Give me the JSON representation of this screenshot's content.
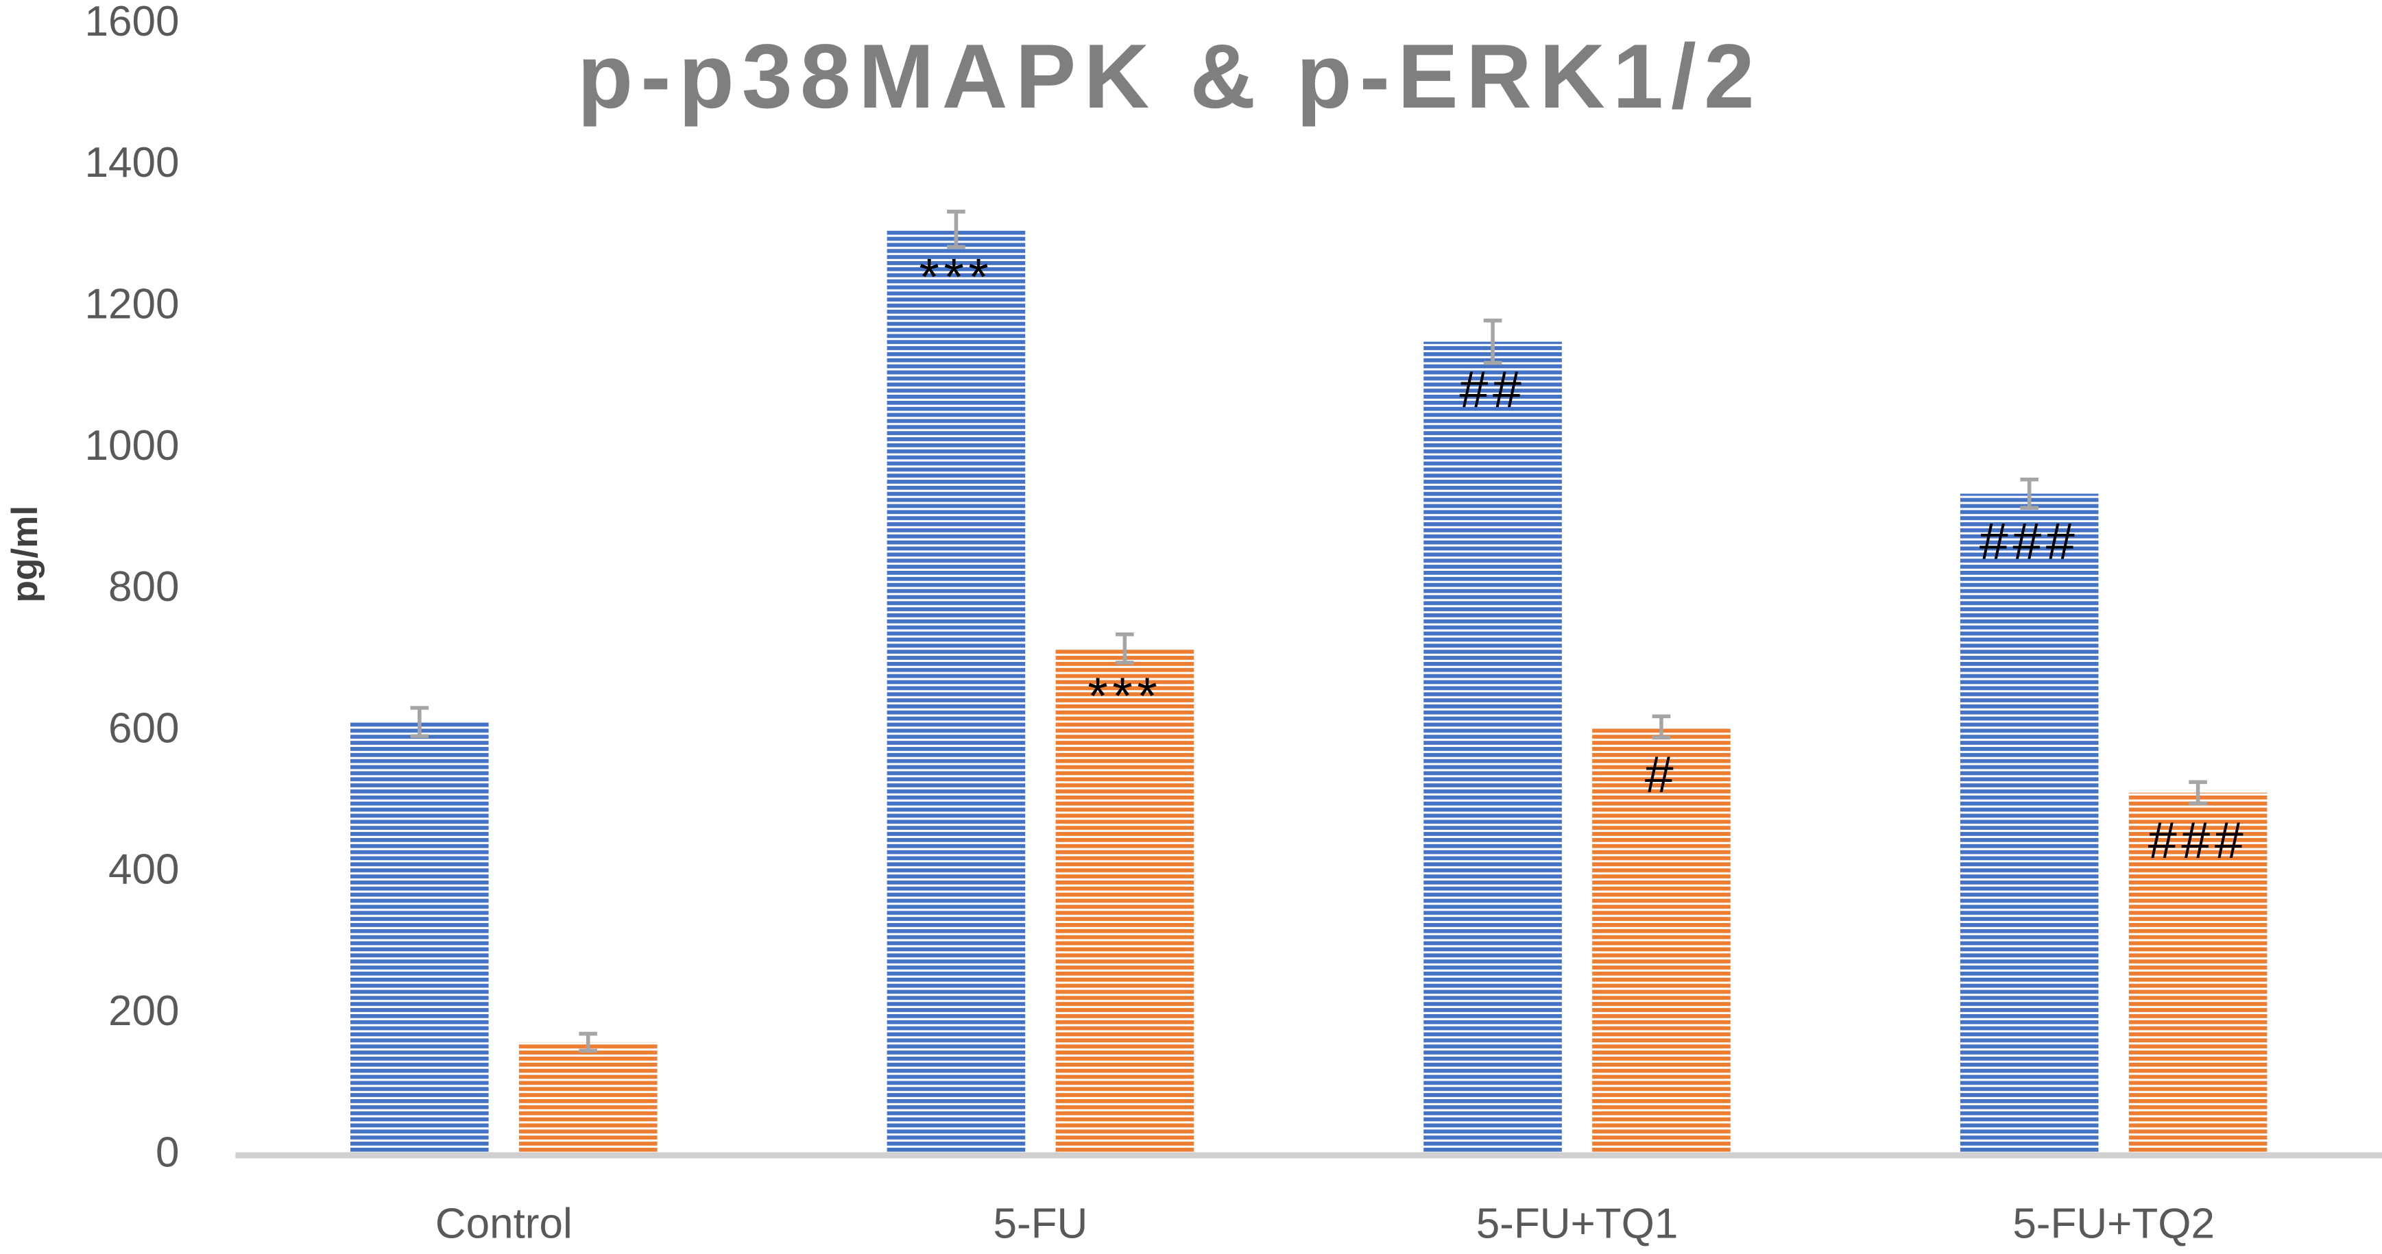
{
  "chart_data": {
    "type": "bar",
    "title": "p-p38MAPK & p-ERK1/2",
    "y_label": "pg/ml",
    "categories": [
      "Control",
      "5-FU",
      "5-FU+TQ1",
      "5-FU+TQ2"
    ],
    "series": [
      {
        "color": "#4472c4",
        "values": [
          613,
          1310,
          1151,
          936
        ],
        "errors": [
          20,
          25,
          30,
          20
        ],
        "annotations": [
          null,
          "***",
          "##",
          "###"
        ]
      },
      {
        "color": "#ed7d31",
        "values": [
          160,
          717,
          606,
          513
        ],
        "errors": [
          12,
          20,
          15,
          15
        ],
        "annotations": [
          null,
          "***",
          "#",
          "###"
        ]
      }
    ],
    "ylim": [
      0,
      1600
    ],
    "yticks": [
      0,
      200,
      400,
      600,
      800,
      1000,
      1200,
      1400,
      1600
    ],
    "grid": false,
    "error_color": "#a5a5a5"
  }
}
